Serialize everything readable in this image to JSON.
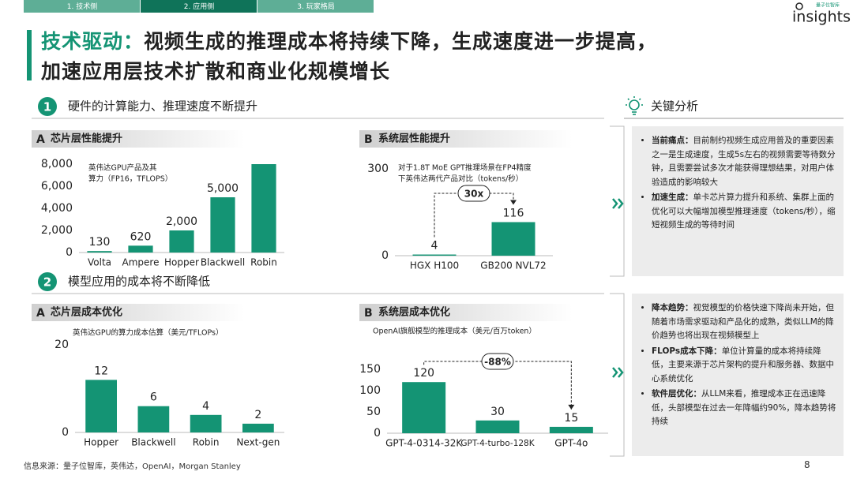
{
  "tabs": [
    "1. 技术侧",
    "2. 应用侧",
    "3. 玩家格局"
  ],
  "active_tab": 1,
  "logo": {
    "small": "量子位智库",
    "name": "insights"
  },
  "title": {
    "highlight": "技术驱动：",
    "line1": "视频生成的推理成本将持续下降，生成速度进一步提高，",
    "line2": "加速应用层技术扩散和商业化规模增长"
  },
  "sections": [
    {
      "number": "1",
      "title": "硬件的计算能力、推理速度不断提升"
    },
    {
      "number": "2",
      "title": "模型应用的成本将不断降低"
    }
  ],
  "chart_data": [
    {
      "type": "bar",
      "panel_letter": "A",
      "panel_title": "芯片层性能提升",
      "annotation": [
        "英伟达GPU产品及其",
        "算力（FP16，TFLOPS）"
      ],
      "categories": [
        "Volta",
        "Ampere",
        "Hopper",
        "Blackwell",
        "Robin"
      ],
      "values": [
        130,
        620,
        2000,
        5000,
        8000
      ],
      "value_labels": [
        "130",
        "620",
        "2,000",
        "5,000",
        null
      ],
      "ylim": [
        0,
        8000
      ],
      "yticks": [
        0,
        {
          "value": 2000,
          "label": "2,000"
        },
        {
          "value": 4000,
          "label": "4,000"
        },
        {
          "value": 6000,
          "label": "6,000"
        },
        {
          "value": 8000,
          "label": "8,000"
        }
      ],
      "color": "#149474"
    },
    {
      "type": "bar",
      "panel_letter": "B",
      "panel_title": "系统层性能提升",
      "annotation": [
        "对于1.8T MoE GPT推理场景在FP4精度",
        "下英伟达两代产品对比（tokens/秒）"
      ],
      "callout": "30x",
      "categories": [
        "HGX H100",
        "GB200 NVL72"
      ],
      "values": [
        4,
        116
      ],
      "ylim": [
        0,
        300
      ],
      "yticks": [
        0,
        300
      ],
      "color": "#149474"
    },
    {
      "type": "bar",
      "panel_letter": "A",
      "panel_title": "芯片层成本优化",
      "annotation": [
        "英伟达GPU的算力成本估算（美元/TFLOPs）"
      ],
      "categories": [
        "Hopper",
        "Blackwell",
        "Robin",
        "Next-gen"
      ],
      "values": [
        12,
        6,
        4,
        2
      ],
      "ylim": [
        0,
        20
      ],
      "yticks": [
        0,
        20
      ],
      "color": "#149474"
    },
    {
      "type": "bar",
      "panel_letter": "B",
      "panel_title": "系统层成本优化",
      "annotation": [
        "OpenAI旗舰模型的推理成本（美元/百万token）"
      ],
      "callout": "-88%",
      "categories": [
        "GPT-4-0314-32K",
        "GPT-4-turbo-128K",
        "GPT-4o"
      ],
      "values": [
        120,
        30,
        15
      ],
      "ylim": [
        0,
        150
      ],
      "yticks": [
        0,
        50,
        100,
        150
      ],
      "color": "#149474"
    }
  ],
  "analysis": {
    "title": "关键分析",
    "boxes": [
      [
        {
          "label": "当前痛点：",
          "text": "目前制约视频生成应用普及的重要因素之一是生成速度，生成5s左右的视频需要等待数分钟，且需要尝试多次才能获得理想结果，对用户体验造成的影响较大"
        },
        {
          "label": "加速生成：",
          "text": "单卡芯片算力提升和系统、集群上面的优化可以大幅增加模型推理速度（tokens/秒），缩短视频生成的等待时间"
        }
      ],
      [
        {
          "label": "降本趋势：",
          "text": "视觉模型的价格快速下降尚未开始，但随着市场需求驱动和产品化的成熟，类似LLM的降价趋势也将出现在视频模型上"
        },
        {
          "label": "FLOPs成本下降：",
          "text": "单位计算量的成本将持续降低，主要来源于芯片架构的提升和服务器、数据中心系统优化"
        },
        {
          "label": "软件层优化：",
          "text": "从LLM来看，推理成本正在迅速降低，头部模型在过去一年降幅约90%，降本趋势将持续"
        }
      ]
    ]
  },
  "source": "信息来源：量子位智库，英伟达，OpenAI，Morgan Stanley",
  "page": "8"
}
